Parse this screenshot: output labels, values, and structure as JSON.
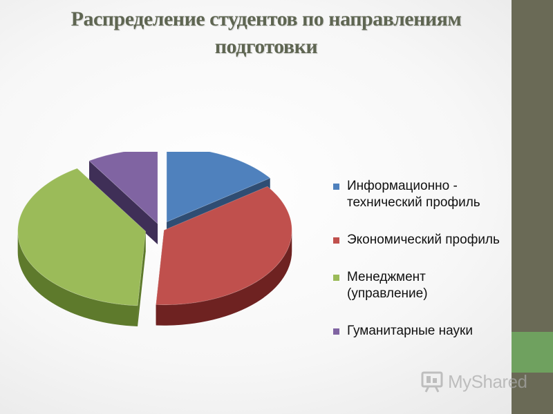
{
  "title_lines": [
    "Распределение студентов по направлениям",
    "подготовки"
  ],
  "chart_data": {
    "type": "pie",
    "title": "Распределение студентов по направлениям подготовки",
    "categories": [
      "Информационно - технический профиль",
      "Экономический профиль",
      "Менеджмент (управление)",
      "Гуманитарные науки"
    ],
    "values": [
      15,
      36,
      40,
      9
    ],
    "unit": "%",
    "style": "3d-exploded",
    "legend_position": "right",
    "colors": [
      "#4f81bd",
      "#c0504d",
      "#9bbb59",
      "#8064a2"
    ],
    "dark_colors": [
      "#2f4d73",
      "#6e2221",
      "#5e7a2c",
      "#3f2f57"
    ]
  },
  "legend": {
    "items": [
      {
        "label": "Информационно - технический профиль",
        "color": "#4f81bd"
      },
      {
        "label": "Экономический профиль",
        "color": "#c0504d"
      },
      {
        "label": "Менеджмент (управление)",
        "color": "#9bbb59"
      },
      {
        "label": "Гуманитарные науки",
        "color": "#8064a2"
      }
    ]
  },
  "watermark": {
    "text": "MyShared",
    "icon": "presentation-board-icon"
  },
  "theme": {
    "side_bar": "#6a6a56",
    "side_accent": "#6fa15f",
    "title_color": "#5f6652"
  }
}
